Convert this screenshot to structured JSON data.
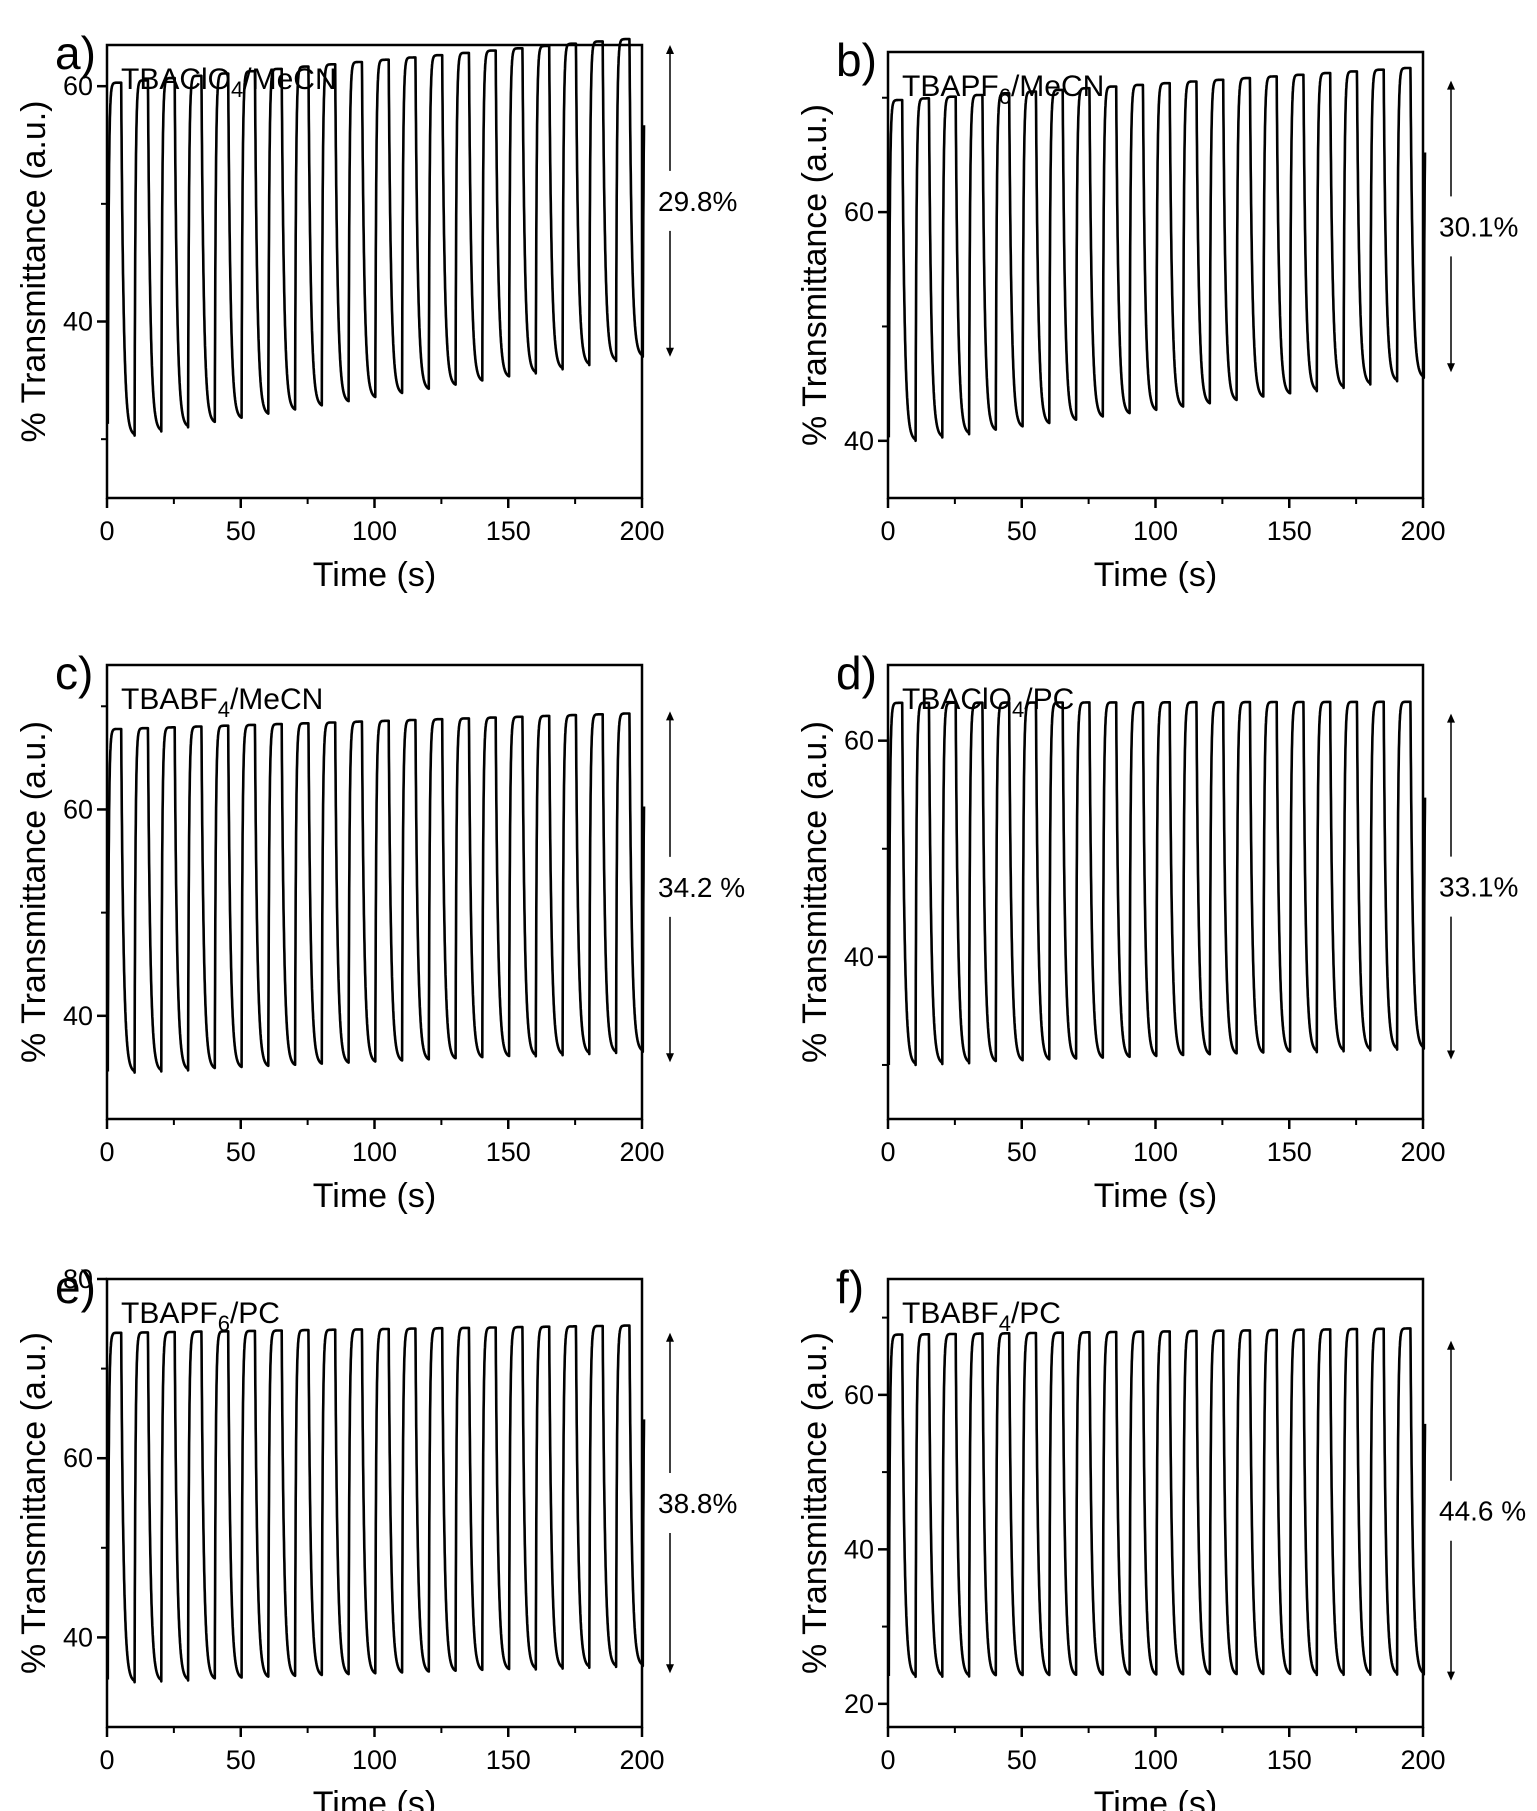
{
  "figure": {
    "background": "#ffffff",
    "line_color": "#000000"
  },
  "chart_data": [
    {
      "panel": "a)",
      "type": "line",
      "legend": {
        "main": "TBAClO",
        "sub": "4",
        "rest": "/MeCN"
      },
      "xlabel": "Time (s)",
      "ylabel": "% Transmittance (a.u.)",
      "xlim": [
        0,
        200
      ],
      "ylim": [
        25,
        63.5
      ],
      "xticks": [
        0,
        50,
        100,
        150,
        200
      ],
      "yticks": [
        40,
        60
      ],
      "period": 10,
      "cycles": 20,
      "high_start": 60.3,
      "high_end": 64.0,
      "low_start": 30.3,
      "low_end": 37.0,
      "start_value": 31.3,
      "end_value": 37.2,
      "amplitude_label": "29.8%",
      "arrow_range": [
        37,
        63.5
      ]
    },
    {
      "panel": "b)",
      "type": "line",
      "legend": {
        "main": "TBAPF",
        "sub": "6",
        "rest": "/MeCN"
      },
      "xlabel": "Time (s)",
      "ylabel": "% Transmittance (a.u.)",
      "xlim": [
        0,
        200
      ],
      "ylim": [
        35,
        74
      ],
      "xticks": [
        0,
        50,
        100,
        150,
        200
      ],
      "yticks": [
        40,
        60
      ],
      "period": 10,
      "cycles": 20,
      "high_start": 69.8,
      "high_end": 72.6,
      "low_start": 40.0,
      "low_end": 45.5,
      "start_value": 40.3,
      "end_value": 45.5,
      "amplitude_label": "30.1%",
      "arrow_range": [
        46,
        71.5
      ]
    },
    {
      "panel": "c)",
      "type": "line",
      "legend": {
        "main": "TBABF",
        "sub": "4",
        "rest": "/MeCN"
      },
      "xlabel": "Time (s)",
      "ylabel": "% Transmittance (a.u.)",
      "xlim": [
        0,
        200
      ],
      "ylim": [
        30,
        74
      ],
      "xticks": [
        0,
        50,
        100,
        150,
        200
      ],
      "yticks": [
        40,
        60
      ],
      "period": 10,
      "cycles": 20,
      "high_start": 67.8,
      "high_end": 69.3,
      "low_start": 34.5,
      "low_end": 36.5,
      "start_value": 34.6,
      "end_value": 36.6,
      "amplitude_label": "34.2 %",
      "arrow_range": [
        35.5,
        69.5
      ]
    },
    {
      "panel": "d)",
      "type": "line",
      "legend": {
        "main": "TBAClO",
        "sub": "4",
        "rest": "/PC"
      },
      "xlabel": "Time (s)",
      "ylabel": "% Transmittance (a.u.)",
      "xlim": [
        0,
        200
      ],
      "ylim": [
        25,
        67
      ],
      "xticks": [
        0,
        50,
        100,
        150,
        200
      ],
      "yticks": [
        40,
        60
      ],
      "period": 10,
      "cycles": 20,
      "high_start": 63.5,
      "high_end": 63.6,
      "low_start": 30.0,
      "low_end": 31.5,
      "start_value": 30.0,
      "end_value": 31.8,
      "amplitude_label": "33.1%",
      "arrow_range": [
        30.5,
        62.5
      ]
    },
    {
      "panel": "e)",
      "type": "line",
      "legend": {
        "main": "TBAPF",
        "sub": "6",
        "rest": "/PC"
      },
      "xlabel": "Time (s)",
      "ylabel": "% Transmittance (a.u.)",
      "xlim": [
        0,
        200
      ],
      "ylim": [
        30,
        80
      ],
      "xticks": [
        0,
        50,
        100,
        150,
        200
      ],
      "yticks": [
        40,
        60,
        80
      ],
      "period": 10,
      "cycles": 20,
      "high_start": 74.0,
      "high_end": 74.8,
      "low_start": 35.0,
      "low_end": 36.8,
      "start_value": 35.3,
      "end_value": 36.9,
      "amplitude_label": "38.8%",
      "arrow_range": [
        36,
        74
      ]
    },
    {
      "panel": "f)",
      "type": "line",
      "legend": {
        "main": "TBABF",
        "sub": "4",
        "rest": "/PC"
      },
      "xlabel": "Time (s)",
      "ylabel": "% Transmittance (a.u.)",
      "xlim": [
        0,
        200
      ],
      "ylim": [
        17,
        75
      ],
      "xticks": [
        0,
        50,
        100,
        150,
        200
      ],
      "yticks": [
        20,
        40,
        60
      ],
      "period": 10,
      "cycles": 20,
      "high_start": 67.8,
      "high_end": 68.6,
      "low_start": 23.5,
      "low_end": 23.8,
      "start_value": 23.6,
      "end_value": 24.0,
      "amplitude_label": "44.6 %",
      "arrow_range": [
        23,
        67
      ]
    }
  ]
}
